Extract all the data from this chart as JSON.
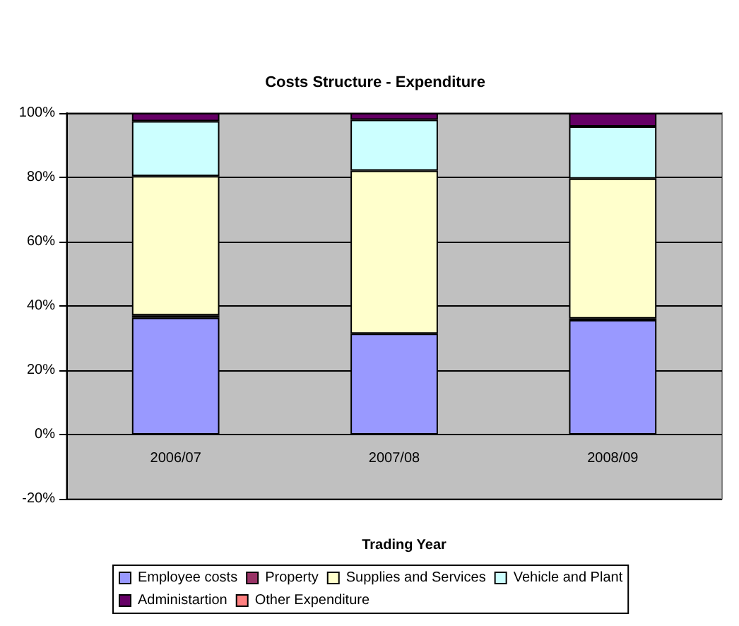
{
  "chart_data": {
    "type": "bar",
    "title": "Costs Structure - Expenditure",
    "xlabel": "Trading Year",
    "categories": [
      "2006/07",
      "2007/08",
      "2008/09"
    ],
    "stacked": true,
    "series": [
      {
        "name": "Employee costs",
        "color": "#9999ff",
        "values": [
          36.3,
          31.4,
          35.6
        ]
      },
      {
        "name": "Property",
        "color": "#993366",
        "values": [
          0.8,
          0,
          0.5
        ]
      },
      {
        "name": "Supplies and Services",
        "color": "#ffffcc",
        "values": [
          43.3,
          50.7,
          43.5
        ]
      },
      {
        "name": "Vehicle and Plant",
        "color": "#ccffff",
        "values": [
          17.1,
          15.8,
          16.2
        ]
      },
      {
        "name": "Administartion",
        "color": "#660066",
        "values": [
          2.5,
          2.1,
          4.2
        ]
      },
      {
        "name": "Other Expenditure",
        "color": "#ff8080",
        "values": [
          0,
          0,
          0
        ]
      }
    ],
    "ylim": [
      -20,
      100
    ],
    "yticks": [
      {
        "value": -20,
        "label": "-20%"
      },
      {
        "value": 0,
        "label": "0%"
      },
      {
        "value": 20,
        "label": "20%"
      },
      {
        "value": 40,
        "label": "40%"
      },
      {
        "value": 60,
        "label": "60%"
      },
      {
        "value": 80,
        "label": "80%"
      },
      {
        "value": 100,
        "label": "100%"
      }
    ],
    "grid": "y",
    "legend": "bottom"
  }
}
